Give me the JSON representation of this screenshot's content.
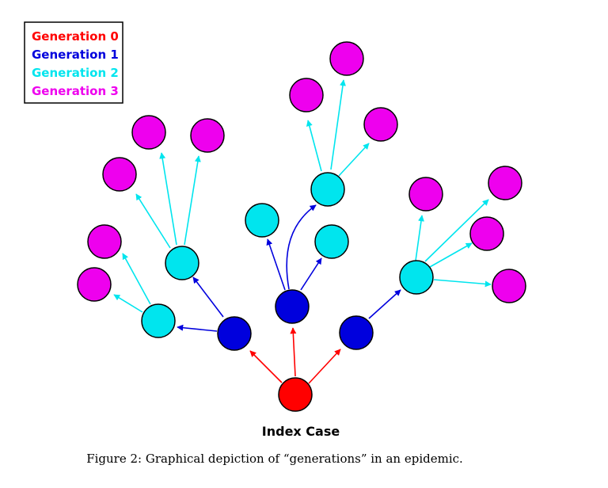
{
  "legend": {
    "items": [
      {
        "label": "Generation 0",
        "color": "#ff0000"
      },
      {
        "label": "Generation 1",
        "color": "#0000dd"
      },
      {
        "label": "Generation 2",
        "color": "#00e5ee"
      },
      {
        "label": "Generation 3",
        "color": "#ee00ee"
      }
    ]
  },
  "diagram": {
    "index_label": "Index Case",
    "caption": "Figure 2: Graphical depiction of “generations” in an epidemic."
  }
}
